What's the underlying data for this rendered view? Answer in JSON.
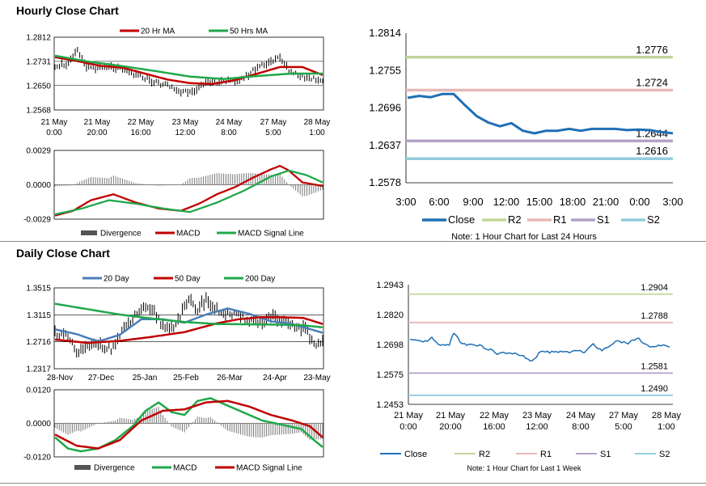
{
  "sections": {
    "hourly_title": "Hourly Close Chart",
    "daily_title": "Daily Close Chart"
  },
  "colors": {
    "red": "#c00000",
    "green": "#1fa84a",
    "blue": "#4a7ebb",
    "black": "#000000",
    "close": "#1f6fb5",
    "r2": "#c3d69b",
    "r1": "#e6b9b8",
    "s1": "#b3a2c7",
    "s2": "#93cddd",
    "divergence": "#777777"
  },
  "chart_data": [
    {
      "id": "hourly_price",
      "type": "line",
      "title": "",
      "legend": [
        "20 Hr MA",
        "50 Hrs MA"
      ],
      "x_tick_labels": [
        [
          "21 May",
          "0:00"
        ],
        [
          "21 May",
          "20:00"
        ],
        [
          "22 May",
          "16:00"
        ],
        [
          "23 May",
          "12:00"
        ],
        [
          "24 May",
          "8:00"
        ],
        [
          "27 May",
          "5:00"
        ],
        [
          "28 May",
          "1:00"
        ]
      ],
      "y_tick_labels": [
        "1.2812",
        "1.2731",
        "1.2650",
        "1.2568"
      ],
      "ylim": [
        1.2568,
        1.2812
      ],
      "n_points": 120,
      "price_anchor_x": [
        0,
        6,
        10,
        14,
        20,
        26,
        34,
        40,
        44,
        50,
        56,
        62,
        68,
        74,
        80,
        86,
        90,
        96,
        100,
        104,
        110,
        116,
        119
      ],
      "price_anchor_y": [
        1.2718,
        1.2722,
        1.2765,
        1.2712,
        1.2708,
        1.2712,
        1.269,
        1.2676,
        1.2662,
        1.265,
        1.2628,
        1.2636,
        1.2657,
        1.2668,
        1.266,
        1.2687,
        1.2712,
        1.2732,
        1.2742,
        1.27,
        1.268,
        1.2672,
        1.2668
      ],
      "ma20_anchor_x": [
        0,
        10,
        20,
        30,
        40,
        50,
        60,
        70,
        80,
        90,
        100,
        110,
        119
      ],
      "ma20_anchor_y": [
        1.2745,
        1.2732,
        1.2716,
        1.271,
        1.269,
        1.267,
        1.2658,
        1.2655,
        1.2668,
        1.269,
        1.2712,
        1.2712,
        1.2685
      ],
      "ma50_anchor_x": [
        0,
        15,
        30,
        45,
        60,
        75,
        90,
        105,
        119
      ],
      "ma50_anchor_y": [
        1.275,
        1.273,
        1.2715,
        1.2698,
        1.268,
        1.2672,
        1.2682,
        1.269,
        1.269
      ]
    },
    {
      "id": "hourly_macd",
      "type": "line",
      "legend": [
        "Divergence",
        "MACD",
        "MACD Signal Line"
      ],
      "y_tick_labels": [
        "0.0029",
        "0.0000",
        "-0.0029"
      ],
      "ylim": [
        -0.0029,
        0.0029
      ],
      "n_points": 120,
      "macd_anchor_x": [
        0,
        8,
        16,
        26,
        36,
        46,
        56,
        64,
        72,
        80,
        88,
        96,
        100,
        104,
        110,
        119
      ],
      "macd_anchor_y": [
        -0.0026,
        -0.0022,
        -0.0013,
        -0.0008,
        -0.0015,
        -0.002,
        -0.0022,
        -0.0016,
        -0.0008,
        -0.0002,
        0.0006,
        0.0013,
        0.0016,
        0.0012,
        0.0002,
        -0.0001
      ],
      "signal_anchor_x": [
        0,
        12,
        24,
        36,
        48,
        60,
        72,
        84,
        96,
        104,
        112,
        119
      ],
      "signal_anchor_y": [
        -0.0025,
        -0.002,
        -0.0013,
        -0.0016,
        -0.002,
        -0.0023,
        -0.0015,
        -0.0005,
        0.0007,
        0.0012,
        0.0008,
        0.0002
      ]
    },
    {
      "id": "hourly_levels",
      "type": "line",
      "x_tick_labels": [
        "3:00",
        "6:00",
        "9:00",
        "12:00",
        "15:00",
        "18:00",
        "21:00",
        "0:00",
        "3:00"
      ],
      "y_tick_labels": [
        "1.2814",
        "1.2755",
        "1.2696",
        "1.2637",
        "1.2578"
      ],
      "ylim": [
        1.2578,
        1.2814
      ],
      "close": [
        1.2712,
        1.2715,
        1.2713,
        1.2718,
        1.2718,
        1.27,
        1.2683,
        1.2673,
        1.2667,
        1.2672,
        1.266,
        1.2656,
        1.266,
        1.266,
        1.2663,
        1.266,
        1.2663,
        1.2663,
        1.2663,
        1.2661,
        1.2662,
        1.2661,
        1.2658,
        1.2656
      ],
      "levels": {
        "R2": 1.2776,
        "R1": 1.2724,
        "S1": 1.2644,
        "S2": 1.2616
      },
      "level_labels": {
        "R2": "1.2776",
        "R1": "1.2724",
        "S1": "1.2644",
        "S2": "1.2616"
      },
      "legend": [
        "Close",
        "R2",
        "R1",
        "S1",
        "S2"
      ],
      "note": "Note: 1 Hour Chart for Last 24 Hours"
    },
    {
      "id": "daily_price",
      "type": "line",
      "legend": [
        "20 Day",
        "50 Day",
        "200 Day"
      ],
      "x_tick_labels": [
        "28-Nov",
        "27-Dec",
        "25-Jan",
        "25-Feb",
        "26-Mar",
        "24-Apr",
        "23-May"
      ],
      "y_tick_labels": [
        "1.3515",
        "1.3115",
        "1.2716",
        "1.2317"
      ],
      "ylim": [
        1.2317,
        1.3515
      ],
      "n_points": 125,
      "price_anchor_x": [
        0,
        6,
        10,
        16,
        20,
        26,
        32,
        36,
        40,
        46,
        50,
        54,
        58,
        62,
        66,
        70,
        74,
        78,
        84,
        90,
        96,
        100,
        104,
        110,
        116,
        120,
        124
      ],
      "price_anchor_y": [
        1.285,
        1.278,
        1.255,
        1.264,
        1.27,
        1.26,
        1.29,
        1.305,
        1.32,
        1.315,
        1.295,
        1.292,
        1.31,
        1.332,
        1.32,
        1.335,
        1.32,
        1.315,
        1.31,
        1.305,
        1.3,
        1.31,
        1.302,
        1.295,
        1.29,
        1.268,
        1.272
      ],
      "ma20_anchor_x": [
        0,
        10,
        20,
        30,
        40,
        50,
        60,
        70,
        80,
        90,
        100,
        110,
        124
      ],
      "ma20_anchor_y": [
        1.29,
        1.283,
        1.272,
        1.282,
        1.305,
        1.305,
        1.3,
        1.312,
        1.321,
        1.313,
        1.302,
        1.298,
        1.285
      ],
      "ma50_anchor_x": [
        0,
        15,
        30,
        45,
        60,
        75,
        85,
        95,
        105,
        115,
        124
      ],
      "ma50_anchor_y": [
        1.275,
        1.27,
        1.273,
        1.279,
        1.286,
        1.299,
        1.305,
        1.308,
        1.308,
        1.307,
        1.298
      ],
      "ma200_anchor_x": [
        0,
        15,
        30,
        45,
        60,
        75,
        90,
        105,
        115,
        124
      ],
      "ma200_anchor_y": [
        1.328,
        1.32,
        1.312,
        1.306,
        1.301,
        1.298,
        1.2975,
        1.297,
        1.296,
        1.293
      ]
    },
    {
      "id": "daily_macd",
      "type": "line",
      "legend": [
        "Divergence",
        "MACD",
        "MACD Signal Line"
      ],
      "y_tick_labels": [
        "0.0120",
        "0.0000",
        "-0.0120"
      ],
      "ylim": [
        -0.012,
        0.012
      ],
      "n_points": 125,
      "macd_anchor_x": [
        0,
        6,
        12,
        20,
        28,
        36,
        42,
        48,
        54,
        60,
        66,
        72,
        78,
        84,
        90,
        96,
        102,
        108,
        114,
        120,
        124
      ],
      "macd_anchor_y": [
        -0.005,
        -0.009,
        -0.01,
        -0.009,
        -0.006,
        -0.001,
        0.0045,
        0.0075,
        0.004,
        0.003,
        0.008,
        0.009,
        0.007,
        0.005,
        0.003,
        0.001,
        0.0,
        -0.001,
        -0.002,
        -0.006,
        -0.0085
      ],
      "signal_anchor_x": [
        0,
        10,
        20,
        30,
        40,
        50,
        60,
        70,
        80,
        90,
        100,
        110,
        118,
        124
      ],
      "signal_anchor_y": [
        -0.004,
        -0.008,
        -0.009,
        -0.006,
        0.001,
        0.0045,
        0.005,
        0.0075,
        0.008,
        0.006,
        0.003,
        0.001,
        -0.001,
        -0.005
      ]
    },
    {
      "id": "daily_levels",
      "type": "line",
      "x_tick_labels": [
        [
          "21 May",
          "0:00"
        ],
        [
          "21 May",
          "20:00"
        ],
        [
          "22 May",
          "16:00"
        ],
        [
          "23 May",
          "12:00"
        ],
        [
          "24 May",
          "8:00"
        ],
        [
          "27 May",
          "5:00"
        ],
        [
          "28 May",
          "1:00"
        ]
      ],
      "y_tick_labels": [
        "1.2943",
        "1.2820",
        "1.2698",
        "1.2575",
        "1.2453"
      ],
      "ylim": [
        1.2453,
        1.2943
      ],
      "n_points": 120,
      "close_anchor_x": [
        0,
        6,
        10,
        14,
        18,
        20,
        24,
        30,
        36,
        40,
        46,
        52,
        56,
        60,
        66,
        72,
        80,
        84,
        88,
        94,
        100,
        104,
        110,
        116,
        119
      ],
      "close_anchor_y": [
        1.2718,
        1.2705,
        1.2724,
        1.269,
        1.27,
        1.2745,
        1.27,
        1.2698,
        1.268,
        1.266,
        1.2665,
        1.2648,
        1.2628,
        1.267,
        1.2666,
        1.2668,
        1.267,
        1.27,
        1.2672,
        1.2712,
        1.2705,
        1.2726,
        1.2688,
        1.2692,
        1.269
      ],
      "levels": {
        "R2": 1.2904,
        "R1": 1.2788,
        "S1": 1.2581,
        "S2": 1.249
      },
      "level_labels": {
        "R2": "1.2904",
        "R1": "1.2788",
        "S1": "1.2581",
        "S2": "1.2490"
      },
      "legend": [
        "Close",
        "R2",
        "R1",
        "S1",
        "S2"
      ],
      "note": "Note: 1 Hour Chart for Last 1 Week"
    }
  ]
}
